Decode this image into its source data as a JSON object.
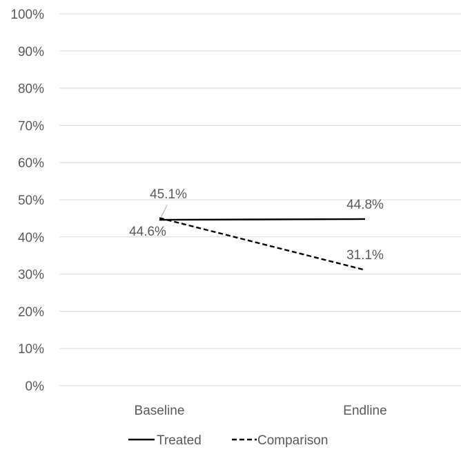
{
  "chart_data": {
    "type": "line",
    "categories": [
      "Baseline",
      "Endline"
    ],
    "series": [
      {
        "name": "Treated",
        "values": [
          44.6,
          44.8
        ],
        "labels": [
          "44.6%",
          "44.8%"
        ],
        "dash": "solid",
        "color": "#000000"
      },
      {
        "name": "Comparison",
        "values": [
          45.1,
          31.1
        ],
        "labels": [
          "45.1%",
          "31.1%"
        ],
        "dash": "dashed",
        "color": "#000000"
      }
    ],
    "y_ticks": [
      "0%",
      "10%",
      "20%",
      "30%",
      "40%",
      "50%",
      "60%",
      "70%",
      "80%",
      "90%",
      "100%"
    ],
    "ylim": [
      0,
      100
    ],
    "grid": true,
    "legend": "bottom",
    "title": "",
    "xlabel": "",
    "ylabel": ""
  }
}
